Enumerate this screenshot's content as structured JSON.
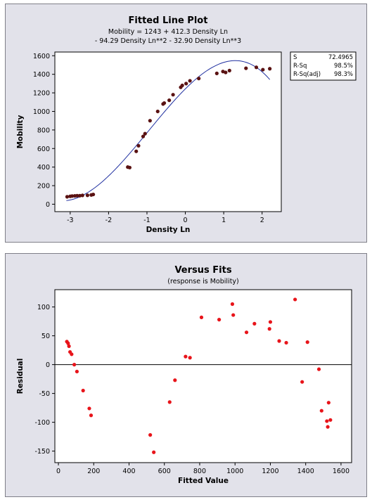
{
  "chart_data": [
    {
      "type": "scatter",
      "title": "Fitted Line Plot",
      "subtitle_lines": [
        "Mobility  =  1243 + 412.3 Density Ln",
        "- 94.29 Density Ln**2 - 32.90 Density Ln**3"
      ],
      "xlabel": "Density Ln",
      "ylabel": "Mobility",
      "xlim": [
        -3.4,
        2.5
      ],
      "ylim": [
        -80,
        1640
      ],
      "xticks": [
        -3,
        -2,
        -1,
        0,
        1,
        2
      ],
      "yticks": [
        0,
        200,
        400,
        600,
        800,
        1000,
        1200,
        1400,
        1600
      ],
      "fit": {
        "intercept": 1243,
        "b1": 412.3,
        "b2": -94.29,
        "b3": -32.9,
        "x_range": [
          -3.1,
          2.2
        ],
        "color": "#1f2fa0"
      },
      "points_color": "#5a1212",
      "points": [
        [
          -3.08,
          80
        ],
        [
          -3.0,
          85
        ],
        [
          -2.95,
          88
        ],
        [
          -2.88,
          90
        ],
        [
          -2.82,
          92
        ],
        [
          -2.75,
          92
        ],
        [
          -2.68,
          95
        ],
        [
          -2.55,
          96
        ],
        [
          -2.45,
          100
        ],
        [
          -2.4,
          105
        ],
        [
          -1.5,
          400
        ],
        [
          -1.45,
          395
        ],
        [
          -1.28,
          570
        ],
        [
          -1.22,
          630
        ],
        [
          -1.1,
          730
        ],
        [
          -1.05,
          760
        ],
        [
          -0.92,
          900
        ],
        [
          -0.72,
          1000
        ],
        [
          -0.58,
          1080
        ],
        [
          -0.55,
          1090
        ],
        [
          -0.42,
          1120
        ],
        [
          -0.32,
          1180
        ],
        [
          -0.12,
          1260
        ],
        [
          -0.08,
          1280
        ],
        [
          0.02,
          1300
        ],
        [
          0.12,
          1330
        ],
        [
          0.35,
          1355
        ],
        [
          0.82,
          1410
        ],
        [
          0.98,
          1430
        ],
        [
          1.05,
          1420
        ],
        [
          1.15,
          1440
        ],
        [
          1.58,
          1465
        ],
        [
          1.85,
          1475
        ],
        [
          2.02,
          1450
        ],
        [
          2.2,
          1460
        ]
      ],
      "stats": [
        {
          "label": "S",
          "value": "72.4965"
        },
        {
          "label": "R-Sq",
          "value": "98.5%"
        },
        {
          "label": "R-Sq(adj)",
          "value": "98.3%"
        }
      ]
    },
    {
      "type": "scatter",
      "title": "Versus Fits",
      "subtitle": "(response is Mobility)",
      "xlabel": "Fitted Value",
      "ylabel": "Residual",
      "xlim": [
        -20,
        1660
      ],
      "ylim": [
        -170,
        130
      ],
      "xticks": [
        0,
        200,
        400,
        600,
        800,
        1000,
        1200,
        1400,
        1600
      ],
      "yticks": [
        -150,
        -100,
        -50,
        0,
        50,
        100
      ],
      "reference_y": 0,
      "points_color": "#e8141a",
      "points": [
        [
          48,
          40
        ],
        [
          55,
          37
        ],
        [
          60,
          32
        ],
        [
          66,
          22
        ],
        [
          75,
          18
        ],
        [
          90,
          0
        ],
        [
          105,
          -12
        ],
        [
          140,
          -45
        ],
        [
          175,
          -76
        ],
        [
          185,
          -88
        ],
        [
          520,
          -122
        ],
        [
          540,
          -152
        ],
        [
          630,
          -65
        ],
        [
          660,
          -27
        ],
        [
          720,
          14
        ],
        [
          745,
          12
        ],
        [
          810,
          82
        ],
        [
          910,
          78
        ],
        [
          985,
          105
        ],
        [
          990,
          86
        ],
        [
          1065,
          56
        ],
        [
          1110,
          71
        ],
        [
          1195,
          62
        ],
        [
          1200,
          74
        ],
        [
          1250,
          41
        ],
        [
          1290,
          38
        ],
        [
          1340,
          113
        ],
        [
          1380,
          -30
        ],
        [
          1410,
          39
        ],
        [
          1475,
          -8
        ],
        [
          1490,
          -80
        ],
        [
          1520,
          -98
        ],
        [
          1525,
          -108
        ],
        [
          1530,
          -66
        ],
        [
          1540,
          -96
        ]
      ]
    }
  ]
}
